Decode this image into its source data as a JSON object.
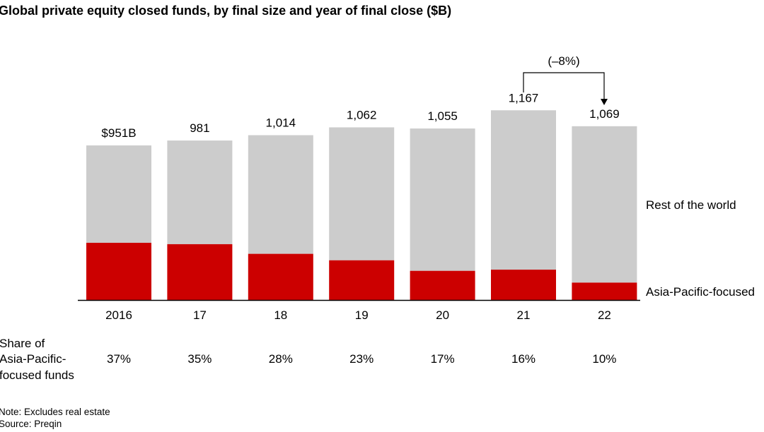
{
  "chart_data": {
    "type": "bar",
    "stacked": true,
    "title": "Global private equity closed funds, by final size and year of final close ($B)",
    "categories": [
      "2016",
      "17",
      "18",
      "19",
      "20",
      "21",
      "22"
    ],
    "totals": [
      951,
      981,
      1014,
      1062,
      1055,
      1167,
      1069
    ],
    "total_labels": [
      "$951B",
      "981",
      "1,014",
      "1,062",
      "1,055",
      "1,167",
      "1,069"
    ],
    "asia_share_pct": [
      37,
      35,
      28,
      23,
      17,
      16,
      10
    ],
    "share_labels": [
      "37%",
      "35%",
      "28%",
      "23%",
      "17%",
      "16%",
      "10%"
    ],
    "share_row_label": [
      "Share of",
      "Asia-Pacific-",
      "focused funds"
    ],
    "series": [
      {
        "name": "Asia-Pacific-focused",
        "color": "#cc0000"
      },
      {
        "name": "Rest of the world",
        "color": "#cccccc"
      }
    ],
    "annotation": {
      "text": "(–8%)",
      "from": "21",
      "to": "22"
    },
    "ylim": [
      0,
      1200
    ],
    "grid": false,
    "legend": "right, inline labels"
  },
  "footer": {
    "note": "Note: Excludes real estate",
    "source": "Source: Preqin"
  }
}
